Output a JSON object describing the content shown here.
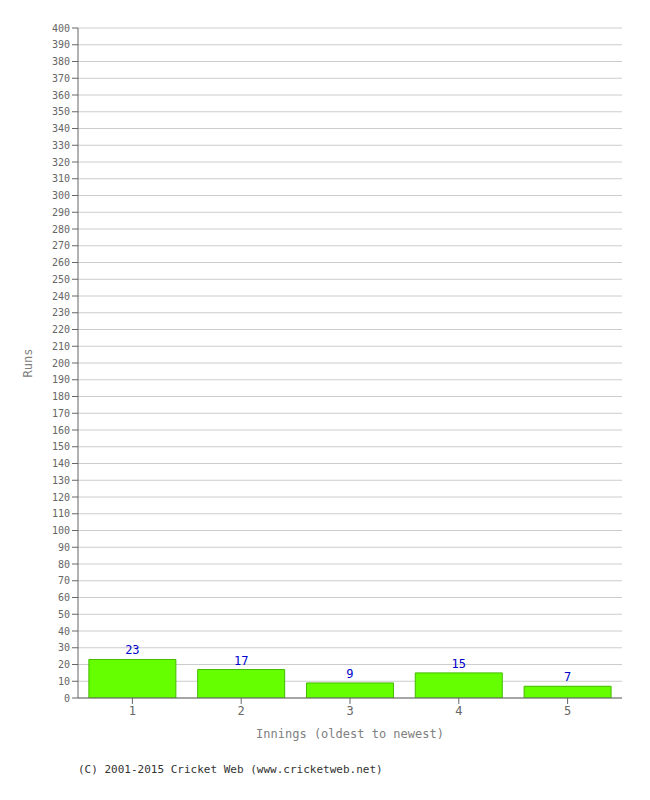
{
  "chart_data": {
    "type": "bar",
    "categories": [
      "1",
      "2",
      "3",
      "4",
      "5"
    ],
    "values": [
      23,
      17,
      9,
      15,
      7
    ],
    "color": "#66ff00",
    "xlabel": "Innings (oldest to newest)",
    "ylabel": "Runs",
    "ylim": [
      0,
      400
    ],
    "yticks": [
      0,
      10,
      20,
      30,
      40,
      50,
      60,
      70,
      80,
      90,
      100,
      110,
      120,
      130,
      140,
      150,
      160,
      170,
      180,
      190,
      200,
      210,
      220,
      230,
      240,
      250,
      260,
      270,
      280,
      290,
      300,
      310,
      320,
      330,
      340,
      350,
      360,
      370,
      380,
      390,
      400
    ],
    "grid": true,
    "data_labels": true,
    "annotations": [
      "(C) 2001-2015 Cricket Web (www.cricketweb.net)"
    ]
  }
}
